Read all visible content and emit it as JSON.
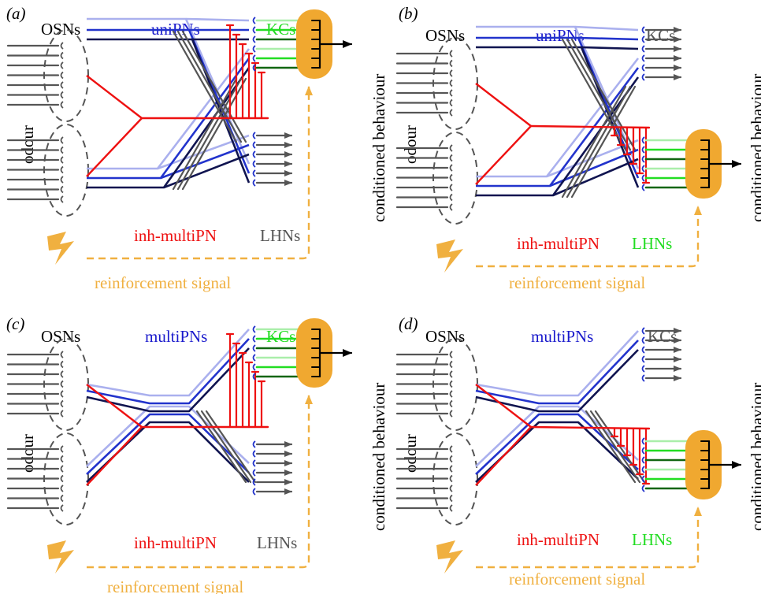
{
  "colors": {
    "input": "#555555",
    "dashed_glom": "#555555",
    "uni_light": "#aab0ee",
    "uni_mid": "#2233cc",
    "uni_dark": "#101450",
    "inhibitory": "#ee1111",
    "kc_active": "#22dd22",
    "kc_light": "#aaeeaa",
    "kc_dark": "#116611",
    "mbon": "#f0a830",
    "reinforcement": "#f0b040",
    "text": "#000000",
    "pn_label": "#1a1acc",
    "inh_label": "#ee1111",
    "active_label": "#22dd22",
    "inactive_label": "#555555"
  },
  "panels": [
    {
      "id": "a",
      "letter": "(a)",
      "input_label": "OSNs",
      "pn_label": "uniPNs",
      "top_target_label": "KCs",
      "bottom_target_label": "LHNs",
      "inh_label": "inh-multiPN",
      "stimulus_label": "odour",
      "output_label": "conditioned behaviour",
      "reinforcement_label": "reinforcement signal",
      "learning_site": "top",
      "pn_type": "uni"
    },
    {
      "id": "b",
      "letter": "(b)",
      "input_label": "OSNs",
      "pn_label": "uniPNs",
      "top_target_label": "KCs",
      "bottom_target_label": "LHNs",
      "inh_label": "inh-multiPN",
      "stimulus_label": "odour",
      "output_label": "conditioned behaviour",
      "reinforcement_label": "reinforcement signal",
      "learning_site": "bottom",
      "pn_type": "uni"
    },
    {
      "id": "c",
      "letter": "(c)",
      "input_label": "OSNs",
      "pn_label": "multiPNs",
      "top_target_label": "KCs",
      "bottom_target_label": "LHNs",
      "inh_label": "inh-multiPN",
      "stimulus_label": "odour",
      "output_label": "conditioned behaviour",
      "reinforcement_label": "reinforcement signal",
      "learning_site": "top",
      "pn_type": "multi"
    },
    {
      "id": "d",
      "letter": "(d)",
      "input_label": "OSNs",
      "pn_label": "multiPNs",
      "top_target_label": "KCs",
      "bottom_target_label": "LHNs",
      "inh_label": "inh-multiPN",
      "stimulus_label": "odour",
      "output_label": "conditioned behaviour",
      "reinforcement_label": "reinforcement signal",
      "learning_site": "bottom",
      "pn_type": "multi"
    }
  ]
}
